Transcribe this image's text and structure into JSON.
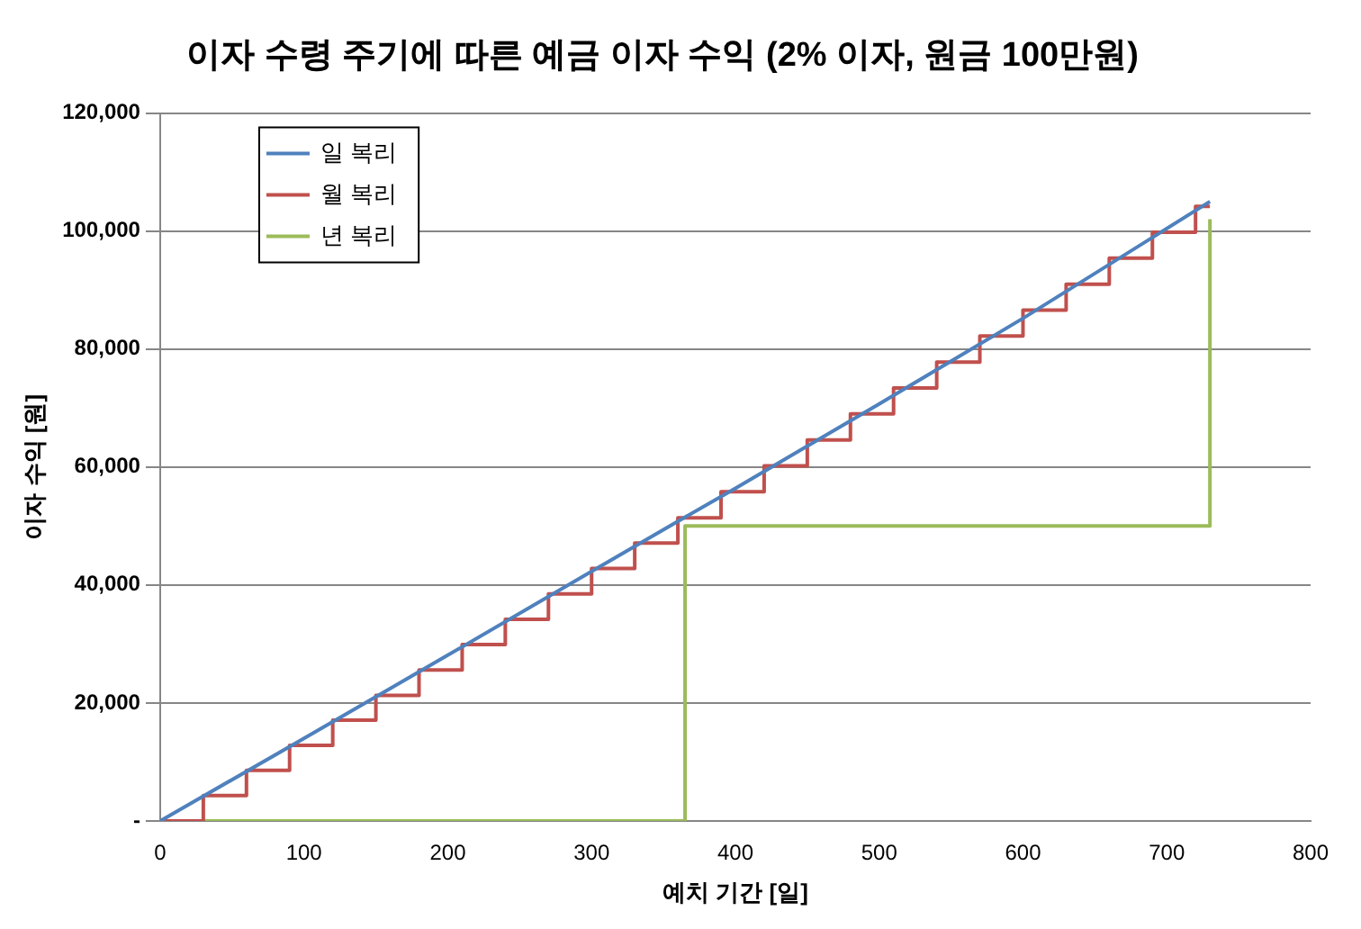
{
  "chart_data": {
    "type": "line",
    "title": "이자 수령 주기에 따른 예금 이자 수익 (2% 이자, 원금 100만원)",
    "xlabel": "예치 기간 [일]",
    "ylabel": "이자 수익 [원]",
    "xlim": [
      0,
      800
    ],
    "xticks": [
      0,
      100,
      200,
      300,
      400,
      500,
      600,
      700,
      800
    ],
    "ylim": [
      0,
      120000
    ],
    "yticks": [
      {
        "value": 0,
        "label": "-"
      },
      {
        "value": 20000,
        "label": "20,000"
      },
      {
        "value": 40000,
        "label": "40,000"
      },
      {
        "value": 60000,
        "label": "60,000"
      },
      {
        "value": 80000,
        "label": "80,000"
      },
      {
        "value": 100000,
        "label": "100,000"
      },
      {
        "value": 120000,
        "label": "120,000"
      }
    ],
    "grid": "y",
    "legend": "top left",
    "marker": "none",
    "series": [
      {
        "name": "일 복리",
        "color": "#4f81bd",
        "x": [
          0,
          100,
          200,
          300,
          365,
          400,
          500,
          600,
          730
        ],
        "values": [
          0,
          14000,
          28100,
          42300,
          51500,
          56400,
          70700,
          85200,
          105000
        ]
      },
      {
        "name": "월 복리",
        "type": "step",
        "color": "#c0504d",
        "x": [
          0,
          30,
          60,
          90,
          120,
          150,
          180,
          210,
          240,
          270,
          300,
          330,
          360,
          390,
          420,
          450,
          480,
          510,
          540,
          570,
          600,
          630,
          660,
          690,
          720,
          730
        ],
        "values": [
          0,
          4300,
          8600,
          12800,
          17100,
          21300,
          25600,
          29900,
          34200,
          38500,
          42800,
          47100,
          51400,
          55800,
          60200,
          64600,
          69000,
          73400,
          77800,
          82200,
          86600,
          91000,
          95400,
          99800,
          104200,
          104200
        ]
      },
      {
        "name": "년 복리",
        "type": "step",
        "color": "#9bbb59",
        "x": [
          0,
          365,
          730
        ],
        "values": [
          0,
          50000,
          102000
        ]
      }
    ]
  }
}
